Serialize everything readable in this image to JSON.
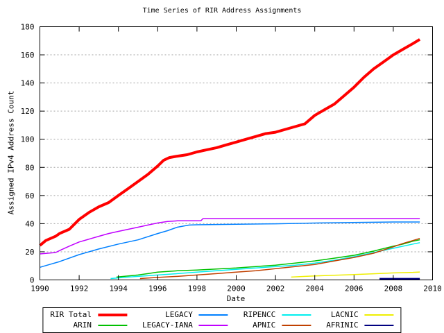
{
  "title": "Time Series of RIR Address Assignments",
  "axes": {
    "xlabel": "Date",
    "ylabel": "Assigned IPv4 Address Count"
  },
  "chart_data": {
    "type": "line",
    "title": "Time Series of RIR Address Assignments",
    "xlabel": "Date",
    "ylabel": "Assigned IPv4 Address Count",
    "xlim": [
      1990,
      2010
    ],
    "ylim": [
      0,
      180
    ],
    "x_ticks": [
      1990,
      1992,
      1994,
      1996,
      1998,
      2000,
      2002,
      2004,
      2006,
      2008,
      2010
    ],
    "y_ticks": [
      0,
      20,
      40,
      60,
      80,
      100,
      120,
      140,
      160,
      180
    ],
    "grid": "horizontal-dotted",
    "grid_color": "#a0a0a0",
    "legend_position": "bottom-center",
    "series": [
      {
        "name": "RIR Total",
        "color": "#ff0000",
        "width": 4,
        "points": [
          [
            1990,
            24.5
          ],
          [
            1990.3,
            28
          ],
          [
            1990.8,
            31
          ],
          [
            1991,
            33
          ],
          [
            1991.5,
            36
          ],
          [
            1992,
            43
          ],
          [
            1992.5,
            48
          ],
          [
            1993,
            52
          ],
          [
            1993.5,
            55
          ],
          [
            1994,
            60
          ],
          [
            1994.5,
            65
          ],
          [
            1995,
            70
          ],
          [
            1995.5,
            75
          ],
          [
            1996,
            81
          ],
          [
            1996.3,
            85
          ],
          [
            1996.6,
            87
          ],
          [
            1997,
            88
          ],
          [
            1997.5,
            89
          ],
          [
            1998,
            91
          ],
          [
            1998.5,
            92.5
          ],
          [
            1999,
            94
          ],
          [
            1999.5,
            96
          ],
          [
            2000,
            98
          ],
          [
            2000.5,
            100
          ],
          [
            2001,
            102
          ],
          [
            2001.5,
            104
          ],
          [
            2002,
            105
          ],
          [
            2002.5,
            107
          ],
          [
            2003,
            109
          ],
          [
            2003.5,
            111
          ],
          [
            2004,
            117
          ],
          [
            2004.5,
            121
          ],
          [
            2005,
            125
          ],
          [
            2005.5,
            131
          ],
          [
            2006,
            137
          ],
          [
            2006.5,
            144
          ],
          [
            2007,
            150
          ],
          [
            2007.5,
            155
          ],
          [
            2008,
            160
          ],
          [
            2008.5,
            164
          ],
          [
            2009,
            168
          ],
          [
            2009.35,
            171
          ]
        ]
      },
      {
        "name": "LEGACY",
        "color": "#0080ff",
        "width": 1.5,
        "points": [
          [
            1990,
            9
          ],
          [
            1990.5,
            11
          ],
          [
            1991,
            13
          ],
          [
            1992,
            18
          ],
          [
            1993,
            22
          ],
          [
            1994,
            25.5
          ],
          [
            1995,
            28.5
          ],
          [
            1996,
            33
          ],
          [
            1996.5,
            35
          ],
          [
            1997,
            37.5
          ],
          [
            1997.6,
            39
          ],
          [
            1998,
            39.2
          ],
          [
            1999,
            39.4
          ],
          [
            2000,
            39.6
          ],
          [
            2002,
            39.9
          ],
          [
            2004.2,
            40.5
          ],
          [
            2008,
            41.2
          ],
          [
            2009.35,
            41.2
          ]
        ]
      },
      {
        "name": "RIPENCC",
        "color": "#00eeee",
        "width": 1.5,
        "points": [
          [
            1993.6,
            1
          ],
          [
            1994.5,
            2
          ],
          [
            1995,
            2.5
          ],
          [
            1996,
            3.5
          ],
          [
            1997,
            4.5
          ],
          [
            1998,
            5.5
          ],
          [
            1999,
            6.5
          ],
          [
            2000,
            7.5
          ],
          [
            2001,
            8.5
          ],
          [
            2002,
            9.5
          ],
          [
            2003,
            10.5
          ],
          [
            2004,
            12
          ],
          [
            2005,
            14
          ],
          [
            2006,
            16.5
          ],
          [
            2007,
            19.5
          ],
          [
            2008,
            22.5
          ],
          [
            2009,
            25.5
          ],
          [
            2009.35,
            26.5
          ]
        ]
      },
      {
        "name": "LACNIC",
        "color": "#eeee00",
        "width": 1.5,
        "points": [
          [
            2002.8,
            2
          ],
          [
            2003.5,
            2.5
          ],
          [
            2004,
            2.8
          ],
          [
            2005,
            3.3
          ],
          [
            2006,
            3.8
          ],
          [
            2007,
            4.4
          ],
          [
            2008,
            5
          ],
          [
            2009,
            5.4
          ],
          [
            2009.35,
            5.6
          ]
        ]
      },
      {
        "name": "ARIN",
        "color": "#00c000",
        "width": 1.5,
        "points": [
          [
            1993.9,
            2
          ],
          [
            1994.5,
            2.8
          ],
          [
            1995,
            3.5
          ],
          [
            1995.5,
            4.5
          ],
          [
            1996,
            5.5
          ],
          [
            1997,
            6.5
          ],
          [
            1998,
            7
          ],
          [
            1999,
            7.8
          ],
          [
            2000,
            8.5
          ],
          [
            2001,
            9.5
          ],
          [
            2002,
            10.5
          ],
          [
            2003,
            12
          ],
          [
            2004,
            13.5
          ],
          [
            2005,
            15.5
          ],
          [
            2006,
            17.5
          ],
          [
            2007,
            20.5
          ],
          [
            2008,
            24
          ],
          [
            2008.5,
            25.5
          ],
          [
            2009,
            27.5
          ],
          [
            2009.35,
            28.5
          ]
        ]
      },
      {
        "name": "LEGACY-IANA",
        "color": "#c000ff",
        "width": 1.5,
        "points": [
          [
            1990,
            18.5
          ],
          [
            1990.8,
            19.5
          ],
          [
            1991.1,
            21.5
          ],
          [
            1991.5,
            24
          ],
          [
            1992,
            27
          ],
          [
            1992.5,
            29
          ],
          [
            1993,
            31
          ],
          [
            1993.5,
            33
          ],
          [
            1994,
            34.5
          ],
          [
            1994.5,
            36
          ],
          [
            1995,
            37.5
          ],
          [
            1995.5,
            39
          ],
          [
            1996,
            40.5
          ],
          [
            1996.5,
            41.5
          ],
          [
            1997,
            42
          ],
          [
            1998.2,
            42
          ],
          [
            1998.3,
            43.5
          ],
          [
            2009.35,
            43.5
          ]
        ]
      },
      {
        "name": "APNIC",
        "color": "#c04000",
        "width": 1.5,
        "points": [
          [
            1995.1,
            1
          ],
          [
            1996,
            1.8
          ],
          [
            1997,
            2.5
          ],
          [
            1998,
            3.5
          ],
          [
            1999,
            4.5
          ],
          [
            2000,
            5.5
          ],
          [
            2001,
            6.5
          ],
          [
            2002,
            8
          ],
          [
            2003,
            9.5
          ],
          [
            2004,
            11
          ],
          [
            2005,
            13.5
          ],
          [
            2006,
            16
          ],
          [
            2007,
            19
          ],
          [
            2008,
            23.5
          ],
          [
            2008.5,
            26
          ],
          [
            2009,
            28
          ],
          [
            2009.35,
            29.5
          ]
        ]
      },
      {
        "name": "AFRINIC",
        "color": "#000080",
        "width": 2.5,
        "points": [
          [
            2007.3,
            0.8
          ],
          [
            2009.35,
            0.8
          ]
        ]
      }
    ]
  },
  "legend": {
    "order": [
      "RIR Total",
      "LEGACY",
      "RIPENCC",
      "LACNIC",
      "ARIN",
      "LEGACY-IANA",
      "APNIC",
      "AFRINIC"
    ]
  }
}
